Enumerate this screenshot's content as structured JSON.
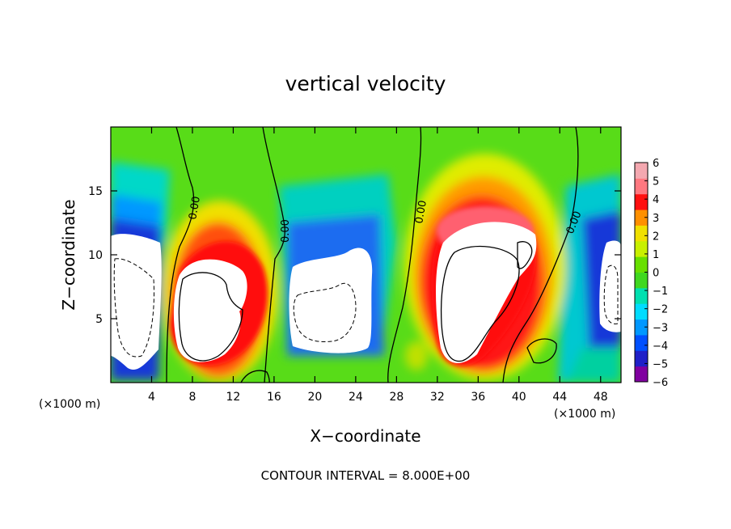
{
  "chart_data": {
    "type": "heatmap",
    "title": "vertical velocity",
    "xlabel": "X−coordinate",
    "ylabel": "Z−coordinate",
    "x_units_left": "(×1000 m)",
    "x_units_right": "(×1000 m)",
    "xlim": [
      0,
      50
    ],
    "ylim": [
      0,
      20
    ],
    "x_ticks": [
      4,
      8,
      12,
      16,
      20,
      24,
      28,
      32,
      36,
      40,
      44,
      48
    ],
    "y_ticks": [
      5,
      10,
      15
    ],
    "colorbar": {
      "ticks": [
        "6",
        "5",
        "4",
        "3",
        "2",
        "1",
        "0",
        "−1",
        "−2",
        "−3",
        "−4",
        "−5",
        "−6"
      ],
      "range": [
        -6,
        6
      ],
      "colors": [
        "#8000a0",
        "#2020c8",
        "#0050ff",
        "#0098ff",
        "#00dcff",
        "#00e0b0",
        "#40d820",
        "#68e000",
        "#c8f000",
        "#f0e000",
        "#ff9000",
        "#ff1010",
        "#ff7880",
        "#f4a8b0"
      ]
    },
    "contour_label": "0.00",
    "contour_interval": "CONTOUR INTERVAL = 8.000E+00",
    "regions": [
      {
        "type": "updraft",
        "x": [
          6,
          15
        ],
        "z": [
          1,
          12
        ],
        "peak": 8
      },
      {
        "type": "downdraft",
        "x": [
          0,
          5.5
        ],
        "z": [
          1,
          12
        ],
        "peak": -8
      },
      {
        "type": "downdraft",
        "x": [
          17,
          26
        ],
        "z": [
          2,
          11
        ],
        "peak": -8
      },
      {
        "type": "updraft",
        "x": [
          30,
          42
        ],
        "z": [
          1,
          15
        ],
        "peak": 10
      },
      {
        "type": "downdraft",
        "x": [
          46,
          50
        ],
        "z": [
          2,
          11
        ],
        "peak": -8
      }
    ]
  }
}
